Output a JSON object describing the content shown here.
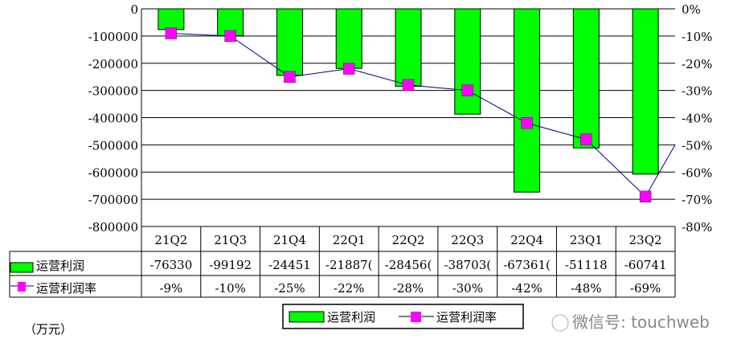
{
  "chart_data": {
    "type": "bar",
    "categories": [
      "21Q2",
      "21Q3",
      "21Q4",
      "22Q1",
      "22Q2",
      "22Q3",
      "22Q4",
      "23Q1",
      "23Q2"
    ],
    "series": [
      {
        "name": "运营利润",
        "type": "bar",
        "axis": "left",
        "color": "#00ff00",
        "values": [
          -76330,
          -99192,
          -244518,
          -218870,
          -284560,
          -387030,
          -673610,
          -511185,
          -607411
        ],
        "table_labels": [
          "-76330",
          "-99192",
          "-24451",
          "-21887(",
          "-28456(",
          "-38703(",
          "-67361(",
          "-51118",
          "-60741"
        ]
      },
      {
        "name": "运营利润率",
        "type": "line",
        "axis": "right",
        "color": "#ff00ff",
        "values": [
          -9,
          -10,
          -25,
          -22,
          -28,
          -30,
          -42,
          -48,
          -69
        ],
        "table_labels": [
          "-9%",
          "-10%",
          "-25%",
          "-22%",
          "-28%",
          "-30%",
          "-42%",
          "-48%",
          "-69%"
        ]
      }
    ],
    "left_axis": {
      "ylim": [
        -800000,
        0
      ],
      "ticks": [
        "0",
        "-100000",
        "-200000",
        "-300000",
        "-400000",
        "-500000",
        "-600000",
        "-700000",
        "-800000"
      ]
    },
    "right_axis": {
      "ylim": [
        -80,
        0
      ],
      "ticks": [
        "0%",
        "-10%",
        "-20%",
        "-30%",
        "-40%",
        "-50%",
        "-60%",
        "-70%",
        "-80%"
      ]
    },
    "grid": true,
    "legend": "bottom",
    "unit_label": "（万元）"
  },
  "watermark": "微信号: touchweb"
}
